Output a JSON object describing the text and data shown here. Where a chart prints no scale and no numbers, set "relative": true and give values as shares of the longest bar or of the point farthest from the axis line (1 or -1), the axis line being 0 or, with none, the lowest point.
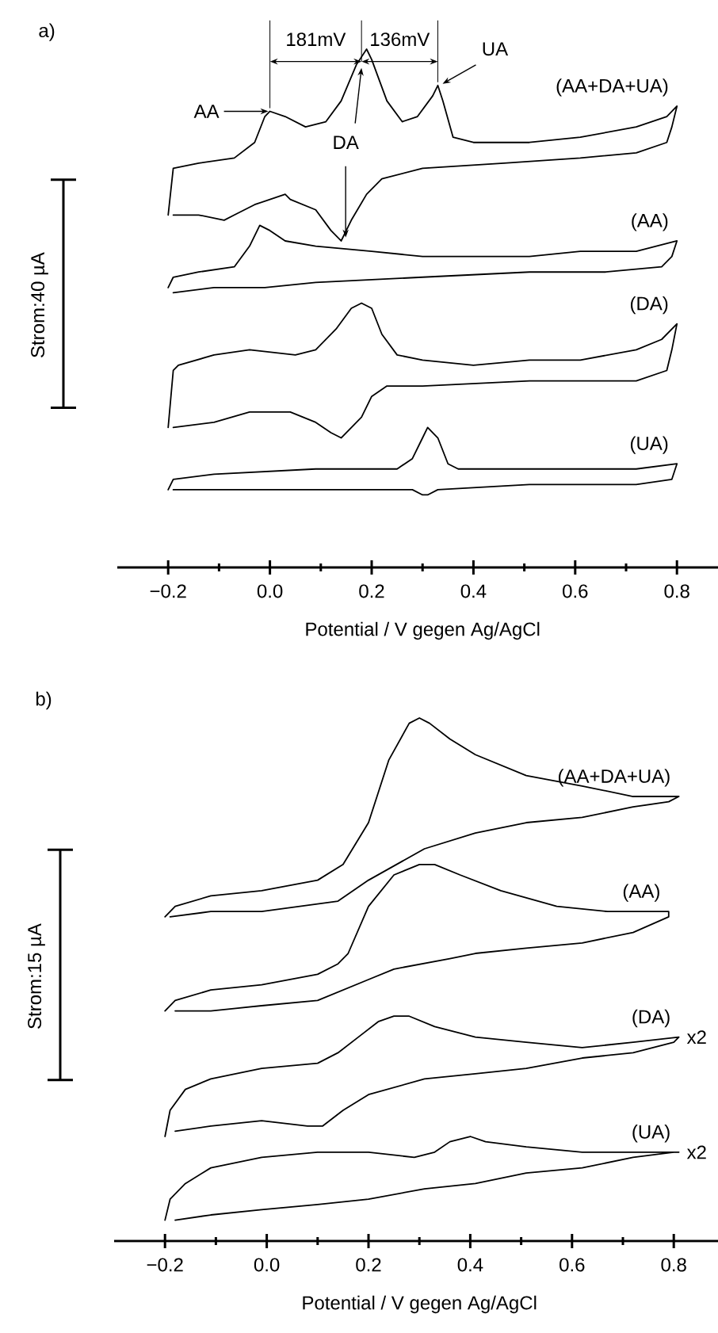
{
  "chart_data": [
    {
      "type": "line",
      "title": "a)",
      "xlabel": "Potential / V gegen Ag/AgCl",
      "ylabel": "Strom:40 µA",
      "relative": true,
      "tick_labels": "x",
      "xlim": [
        -0.3,
        0.9
      ],
      "xticks": [
        {
          "value": -0.2,
          "label": "−0.2"
        },
        {
          "value": -0.1,
          "label": null
        },
        {
          "value": 0,
          "label": "0.0"
        },
        {
          "value": 0.1,
          "label": null
        },
        0.2,
        {
          "value": 0.3,
          "label": null
        },
        0.4,
        {
          "value": 0.5,
          "label": null
        },
        0.6,
        {
          "value": 0.7,
          "label": null
        },
        0.8
      ],
      "series": [
        {
          "name": "(AA+DA+UA)",
          "color": "#000000",
          "x": [
            -0.2,
            -0.19,
            -0.14,
            -0.07,
            -0.03,
            -0.01,
            0.0,
            0.03,
            0.07,
            0.11,
            0.14,
            0.17,
            0.19,
            0.2,
            0.23,
            0.26,
            0.29,
            0.32,
            0.33,
            0.34,
            0.36,
            0.4,
            0.51,
            0.61,
            0.72,
            0.78,
            0.8,
            0.79,
            0.78,
            0.72,
            0.61,
            0.46,
            0.3,
            0.22,
            0.19,
            0.16,
            0.14,
            0.12,
            0.09,
            0.04,
            0.03,
            -0.03,
            -0.07,
            -0.09,
            -0.14,
            -0.19
          ],
          "values": [
            0.68,
            0.77,
            0.78,
            0.79,
            0.82,
            0.87,
            0.88,
            0.87,
            0.85,
            0.86,
            0.9,
            0.97,
            1.0,
            0.98,
            0.9,
            0.86,
            0.87,
            0.91,
            0.93,
            0.9,
            0.83,
            0.82,
            0.82,
            0.83,
            0.85,
            0.87,
            0.89,
            0.85,
            0.82,
            0.8,
            0.79,
            0.78,
            0.77,
            0.75,
            0.72,
            0.67,
            0.63,
            0.65,
            0.69,
            0.71,
            0.72,
            0.7,
            0.68,
            0.67,
            0.68,
            0.68
          ]
        },
        {
          "name": "(AA)",
          "color": "#000000",
          "x": [
            -0.2,
            -0.19,
            -0.14,
            -0.07,
            -0.04,
            -0.02,
            0.0,
            0.03,
            0.09,
            0.2,
            0.3,
            0.4,
            0.51,
            0.61,
            0.72,
            0.8,
            0.79,
            0.77,
            0.66,
            0.51,
            0.3,
            0.09,
            -0.01,
            -0.05,
            -0.11,
            -0.19
          ],
          "values": [
            0.54,
            0.56,
            0.57,
            0.58,
            0.62,
            0.66,
            0.65,
            0.63,
            0.62,
            0.61,
            0.6,
            0.6,
            0.6,
            0.61,
            0.61,
            0.63,
            0.6,
            0.58,
            0.57,
            0.57,
            0.56,
            0.55,
            0.54,
            0.54,
            0.54,
            0.53
          ]
        },
        {
          "name": "(DA)",
          "color": "#000000",
          "x": [
            -0.2,
            -0.19,
            -0.18,
            -0.11,
            -0.04,
            0.05,
            0.09,
            0.13,
            0.16,
            0.18,
            0.2,
            0.22,
            0.25,
            0.3,
            0.4,
            0.51,
            0.61,
            0.72,
            0.77,
            0.8,
            0.79,
            0.78,
            0.72,
            0.51,
            0.3,
            0.23,
            0.2,
            0.18,
            0.14,
            0.12,
            0.09,
            0.04,
            -0.04,
            -0.11,
            -0.19
          ],
          "values": [
            0.27,
            0.38,
            0.39,
            0.41,
            0.42,
            0.41,
            0.42,
            0.46,
            0.5,
            0.51,
            0.5,
            0.45,
            0.41,
            0.4,
            0.39,
            0.4,
            0.4,
            0.42,
            0.44,
            0.47,
            0.42,
            0.38,
            0.36,
            0.36,
            0.35,
            0.35,
            0.33,
            0.29,
            0.25,
            0.26,
            0.28,
            0.3,
            0.3,
            0.28,
            0.27
          ]
        },
        {
          "name": "(UA)",
          "color": "#000000",
          "x": [
            -0.2,
            -0.19,
            -0.11,
            0.09,
            0.25,
            0.28,
            0.3,
            0.31,
            0.33,
            0.35,
            0.37,
            0.51,
            0.72,
            0.8,
            0.79,
            0.72,
            0.51,
            0.33,
            0.31,
            0.3,
            0.28,
            0.25,
            0.09,
            -0.11,
            -0.19
          ],
          "values": [
            0.15,
            0.17,
            0.18,
            0.19,
            0.19,
            0.21,
            0.25,
            0.27,
            0.25,
            0.2,
            0.19,
            0.19,
            0.19,
            0.2,
            0.17,
            0.16,
            0.16,
            0.15,
            0.14,
            0.14,
            0.15,
            0.15,
            0.15,
            0.15,
            0.15
          ]
        }
      ],
      "annotations": [
        {
          "text": "AA",
          "x": 0.0,
          "y": 0.88
        },
        {
          "text": "DA",
          "x": 0.18,
          "y": 0.97
        },
        {
          "text": "UA",
          "x": 0.33,
          "y": 0.93
        },
        "181mV",
        "136mV"
      ]
    },
    {
      "type": "line",
      "title": "b)",
      "xlabel": "Potential / V gegen Ag/AgCl",
      "ylabel": "Strom:15 µA",
      "relative": true,
      "tick_labels": "x",
      "xlim": [
        -0.3,
        0.9
      ],
      "xticks": [
        {
          "value": -0.2,
          "label": "−0.2"
        },
        {
          "value": -0.1,
          "label": null
        },
        {
          "value": 0,
          "label": "0.0"
        },
        {
          "value": 0.1,
          "label": null
        },
        0.2,
        {
          "value": 0.3,
          "label": null
        },
        0.4,
        {
          "value": 0.5,
          "label": null
        },
        0.6,
        {
          "value": 0.7,
          "label": null
        },
        0.8
      ],
      "series": [
        {
          "name": "(AA+DA+UA)",
          "color": "#000000",
          "x": [
            -0.2,
            -0.18,
            -0.11,
            -0.01,
            0.1,
            0.15,
            0.2,
            0.24,
            0.28,
            0.3,
            0.32,
            0.36,
            0.41,
            0.51,
            0.62,
            0.72,
            0.81,
            0.79,
            0.72,
            0.62,
            0.51,
            0.41,
            0.31,
            0.2,
            0.14,
            -0.01,
            -0.11,
            -0.19
          ],
          "values": [
            0.62,
            0.64,
            0.66,
            0.67,
            0.69,
            0.72,
            0.8,
            0.92,
            0.99,
            1.0,
            0.99,
            0.96,
            0.93,
            0.89,
            0.87,
            0.85,
            0.85,
            0.84,
            0.83,
            0.81,
            0.8,
            0.78,
            0.75,
            0.69,
            0.65,
            0.63,
            0.63,
            0.62
          ]
        },
        {
          "name": "(AA)",
          "color": "#000000",
          "x": [
            -0.2,
            -0.18,
            -0.11,
            -0.01,
            0.1,
            0.14,
            0.16,
            0.2,
            0.25,
            0.3,
            0.33,
            0.38,
            0.46,
            0.57,
            0.67,
            0.79,
            0.79,
            0.72,
            0.62,
            0.51,
            0.41,
            0.36,
            0.25,
            0.2,
            0.1,
            -0.01,
            -0.11,
            -0.18
          ],
          "values": [
            0.44,
            0.46,
            0.48,
            0.49,
            0.51,
            0.53,
            0.55,
            0.64,
            0.7,
            0.72,
            0.72,
            0.7,
            0.67,
            0.64,
            0.63,
            0.63,
            0.62,
            0.59,
            0.57,
            0.56,
            0.55,
            0.54,
            0.52,
            0.5,
            0.46,
            0.45,
            0.44,
            0.44
          ]
        },
        {
          "name": "(DA)",
          "color": "#000000",
          "x": [
            -0.2,
            -0.19,
            -0.16,
            -0.11,
            -0.01,
            0.1,
            0.14,
            0.18,
            0.22,
            0.25,
            0.28,
            0.33,
            0.41,
            0.51,
            0.62,
            0.72,
            0.81,
            0.8,
            0.72,
            0.62,
            0.51,
            0.41,
            0.31,
            0.2,
            0.15,
            0.11,
            0.08,
            -0.01,
            -0.11,
            -0.18
          ],
          "values": [
            0.2,
            0.25,
            0.29,
            0.31,
            0.33,
            0.34,
            0.36,
            0.39,
            0.42,
            0.43,
            0.43,
            0.41,
            0.39,
            0.38,
            0.37,
            0.38,
            0.39,
            0.38,
            0.36,
            0.35,
            0.33,
            0.32,
            0.31,
            0.28,
            0.25,
            0.22,
            0.22,
            0.23,
            0.22,
            0.21
          ]
        },
        {
          "name": "(UA)",
          "color": "#000000",
          "x": [
            -0.2,
            -0.19,
            -0.16,
            -0.11,
            -0.01,
            0.1,
            0.2,
            0.29,
            0.33,
            0.36,
            0.4,
            0.43,
            0.51,
            0.62,
            0.81,
            0.8,
            0.72,
            0.62,
            0.51,
            0.41,
            0.31,
            0.2,
            0.1,
            -0.01,
            -0.11,
            -0.18
          ],
          "values": [
            0.04,
            0.08,
            0.11,
            0.14,
            0.16,
            0.17,
            0.17,
            0.16,
            0.17,
            0.19,
            0.2,
            0.19,
            0.18,
            0.17,
            0.17,
            0.17,
            0.16,
            0.14,
            0.13,
            0.11,
            0.1,
            0.08,
            0.07,
            0.06,
            0.05,
            0.04
          ]
        }
      ],
      "annotations": [
        {
          "text": "x2",
          "x": 0.8,
          "y": 0.39
        },
        {
          "text": "x2",
          "x": 0.8,
          "y": 0.17
        }
      ]
    }
  ]
}
